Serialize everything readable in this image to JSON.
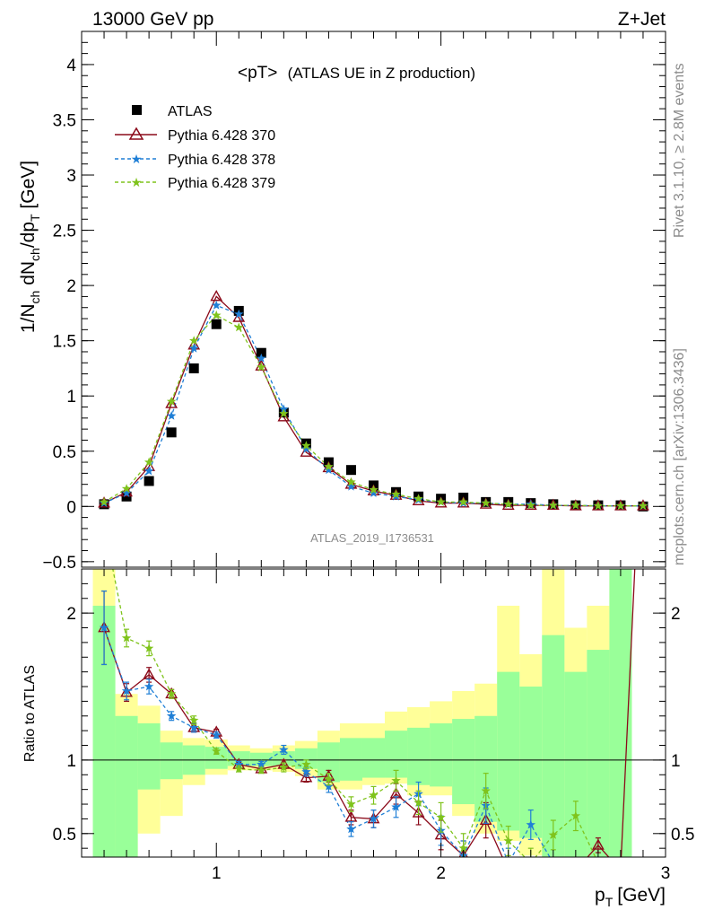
{
  "header": {
    "left": "13000 GeV pp",
    "right": "Z+Jet"
  },
  "side": {
    "rivet": "Rivet 3.1.10, ≥ 2.8M events",
    "mcplots": "mcplots.cern.ch [arXiv:1306.3436]"
  },
  "watermark": "ATLAS_2019_I1736531",
  "chart_data": {
    "type": "scatter",
    "title": "<pT>",
    "subtitle": "(ATLAS UE in Z production)",
    "xlabel_main": "p",
    "xlabel_sub": "T",
    "xlabel_unit": "[GeV]",
    "ylabel_parts": [
      "1/N",
      "ch",
      " dN",
      "ch",
      "/dp",
      "T",
      " [GeV]"
    ],
    "ratio_ylabel": "Ratio to ATLAS",
    "xlim": [
      0.4,
      3.0
    ],
    "ylim": [
      -0.55,
      4.3
    ],
    "ratio_ylim": [
      0.34,
      2.3
    ],
    "x_ticks": [
      {
        "v": 1,
        "label": "1"
      },
      {
        "v": 2,
        "label": "2"
      },
      {
        "v": 3,
        "label": "3"
      }
    ],
    "y_ticks": [
      {
        "v": -0.5,
        "label": "−0.5"
      },
      {
        "v": 0,
        "label": "0"
      },
      {
        "v": 0.5,
        "label": "0.5"
      },
      {
        "v": 1,
        "label": "1"
      },
      {
        "v": 1.5,
        "label": "1.5"
      },
      {
        "v": 2,
        "label": "2"
      },
      {
        "v": 2.5,
        "label": "2.5"
      },
      {
        "v": 3,
        "label": "3"
      },
      {
        "v": 3.5,
        "label": "3.5"
      },
      {
        "v": 4,
        "label": "4"
      }
    ],
    "ratio_ticks": [
      {
        "v": 0.5,
        "label": "0.5"
      },
      {
        "v": 1,
        "label": "1"
      },
      {
        "v": 2,
        "label": "2"
      }
    ],
    "x": [
      0.5,
      0.6,
      0.7,
      0.8,
      0.9,
      1.0,
      1.1,
      1.2,
      1.3,
      1.4,
      1.5,
      1.6,
      1.7,
      1.8,
      1.9,
      2.0,
      2.1,
      2.2,
      2.3,
      2.4,
      2.5,
      2.6,
      2.7,
      2.8,
      2.9
    ],
    "data": {
      "name": "ATLAS",
      "values": [
        0.02,
        0.09,
        0.23,
        0.67,
        1.25,
        1.65,
        1.77,
        1.39,
        0.85,
        0.57,
        0.4,
        0.33,
        0.19,
        0.13,
        0.09,
        0.07,
        0.08,
        0.04,
        0.04,
        0.03,
        0.02,
        0.01,
        0.01,
        0.01,
        0.0
      ]
    },
    "series": [
      {
        "name": "Pythia 6.428 370",
        "color": "#8b0a1a",
        "marker": "triangle",
        "dash": "solid",
        "values": [
          0.03,
          0.13,
          0.36,
          0.93,
          1.46,
          1.9,
          1.71,
          1.27,
          0.81,
          0.49,
          0.35,
          0.2,
          0.14,
          0.1,
          0.05,
          0.03,
          0.03,
          0.02,
          0.01,
          0.01,
          0.01,
          0.005,
          0.005,
          0.005,
          0.005
        ],
        "ratio": [
          1.9,
          1.46,
          1.58,
          1.45,
          1.22,
          1.19,
          0.97,
          0.94,
          0.97,
          0.88,
          0.89,
          0.61,
          0.6,
          0.77,
          0.64,
          0.49,
          0.35,
          0.59,
          0.25,
          0.25,
          0.25,
          0.25,
          0.42,
          0.25,
          3.5
        ],
        "ratio_err": [
          0.25,
          0.06,
          0.05,
          0.03,
          0.03,
          0.02,
          0.02,
          0.02,
          0.03,
          0.03,
          0.04,
          0.05,
          0.06,
          0.07,
          0.08,
          0.1,
          0.1,
          0.12,
          0,
          0,
          0,
          0,
          0.05,
          0,
          0
        ]
      },
      {
        "name": "Pythia 6.428 378",
        "color": "#1f7fd6",
        "marker": "star",
        "dash": "dashed",
        "values": [
          0.03,
          0.12,
          0.32,
          0.82,
          1.43,
          1.82,
          1.74,
          1.34,
          0.88,
          0.52,
          0.33,
          0.18,
          0.12,
          0.09,
          0.06,
          0.04,
          0.03,
          0.03,
          0.02,
          0.02,
          0.01,
          0.01,
          0.005,
          0.005,
          0.005
        ],
        "ratio": [
          1.9,
          1.47,
          1.5,
          1.3,
          1.22,
          1.17,
          0.97,
          0.97,
          1.07,
          0.92,
          0.82,
          0.53,
          0.6,
          0.68,
          0.77,
          0.52,
          0.35,
          0.69,
          0.3,
          0.56,
          0.3,
          0.3,
          0.3,
          0.3,
          0.3
        ],
        "ratio_err": [
          0.25,
          0.06,
          0.05,
          0.03,
          0.03,
          0.02,
          0.02,
          0.02,
          0.03,
          0.03,
          0.04,
          0.05,
          0.06,
          0.07,
          0.08,
          0.1,
          0.1,
          0.12,
          0.1,
          0.1,
          0,
          0,
          0,
          0,
          0
        ]
      },
      {
        "name": "Pythia 6.428 379",
        "color": "#7fc31c",
        "marker": "star",
        "dash": "dashed",
        "values": [
          0.04,
          0.16,
          0.4,
          0.95,
          1.5,
          1.73,
          1.62,
          1.26,
          0.84,
          0.55,
          0.36,
          0.22,
          0.15,
          0.11,
          0.07,
          0.04,
          0.04,
          0.03,
          0.02,
          0.01,
          0.01,
          0.01,
          0.005,
          0.005,
          0.005
        ],
        "ratio": [
          2.6,
          1.83,
          1.76,
          1.45,
          1.27,
          1.06,
          0.94,
          0.93,
          0.95,
          0.97,
          0.87,
          0.7,
          0.76,
          0.86,
          0.71,
          0.61,
          0.4,
          0.79,
          0.45,
          0.3,
          0.49,
          0.62,
          0.3,
          0.3,
          0.3
        ],
        "ratio_err": [
          0.25,
          0.06,
          0.05,
          0.03,
          0.03,
          0.02,
          0.02,
          0.02,
          0.03,
          0.03,
          0.04,
          0.05,
          0.06,
          0.07,
          0.08,
          0.1,
          0.1,
          0.12,
          0.1,
          0.1,
          0.1,
          0.1,
          0,
          0,
          0
        ]
      }
    ],
    "bands": {
      "yellow_color": "#ffff99",
      "green_color": "#99ff99",
      "edges": [
        0.45,
        0.55,
        0.65,
        0.75,
        0.85,
        0.95,
        1.05,
        1.15,
        1.25,
        1.35,
        1.45,
        1.55,
        1.65,
        1.75,
        1.85,
        1.95,
        2.05,
        2.15,
        2.25,
        2.35,
        2.45,
        2.55,
        2.65,
        2.75,
        2.85
      ],
      "yellow_lo": [
        0.34,
        0.34,
        0.5,
        0.62,
        0.83,
        0.9,
        0.93,
        0.93,
        0.92,
        0.89,
        0.8,
        0.8,
        0.83,
        0.84,
        0.76,
        0.76,
        0.62,
        0.5,
        0.45,
        0.35,
        0.34,
        0.34,
        0.34,
        0.34
      ],
      "yellow_hi": [
        2.3,
        1.45,
        1.37,
        1.2,
        1.15,
        1.14,
        1.1,
        1.08,
        1.1,
        1.13,
        1.2,
        1.25,
        1.25,
        1.33,
        1.36,
        1.4,
        1.47,
        1.52,
        2.05,
        1.72,
        2.3,
        1.9,
        2.05,
        2.3
      ],
      "green_lo": [
        0.34,
        0.34,
        0.8,
        0.87,
        0.9,
        0.94,
        0.96,
        0.96,
        0.96,
        0.94,
        0.85,
        0.86,
        0.88,
        0.88,
        0.83,
        0.82,
        0.7,
        0.58,
        0.52,
        0.47,
        0.34,
        0.34,
        0.34,
        0.34
      ],
      "green_hi": [
        2.05,
        1.3,
        1.25,
        1.12,
        1.1,
        1.09,
        1.06,
        1.05,
        1.06,
        1.08,
        1.12,
        1.15,
        1.15,
        1.2,
        1.22,
        1.25,
        1.28,
        1.3,
        1.6,
        1.5,
        1.85,
        1.6,
        1.75,
        2.3
      ]
    }
  }
}
